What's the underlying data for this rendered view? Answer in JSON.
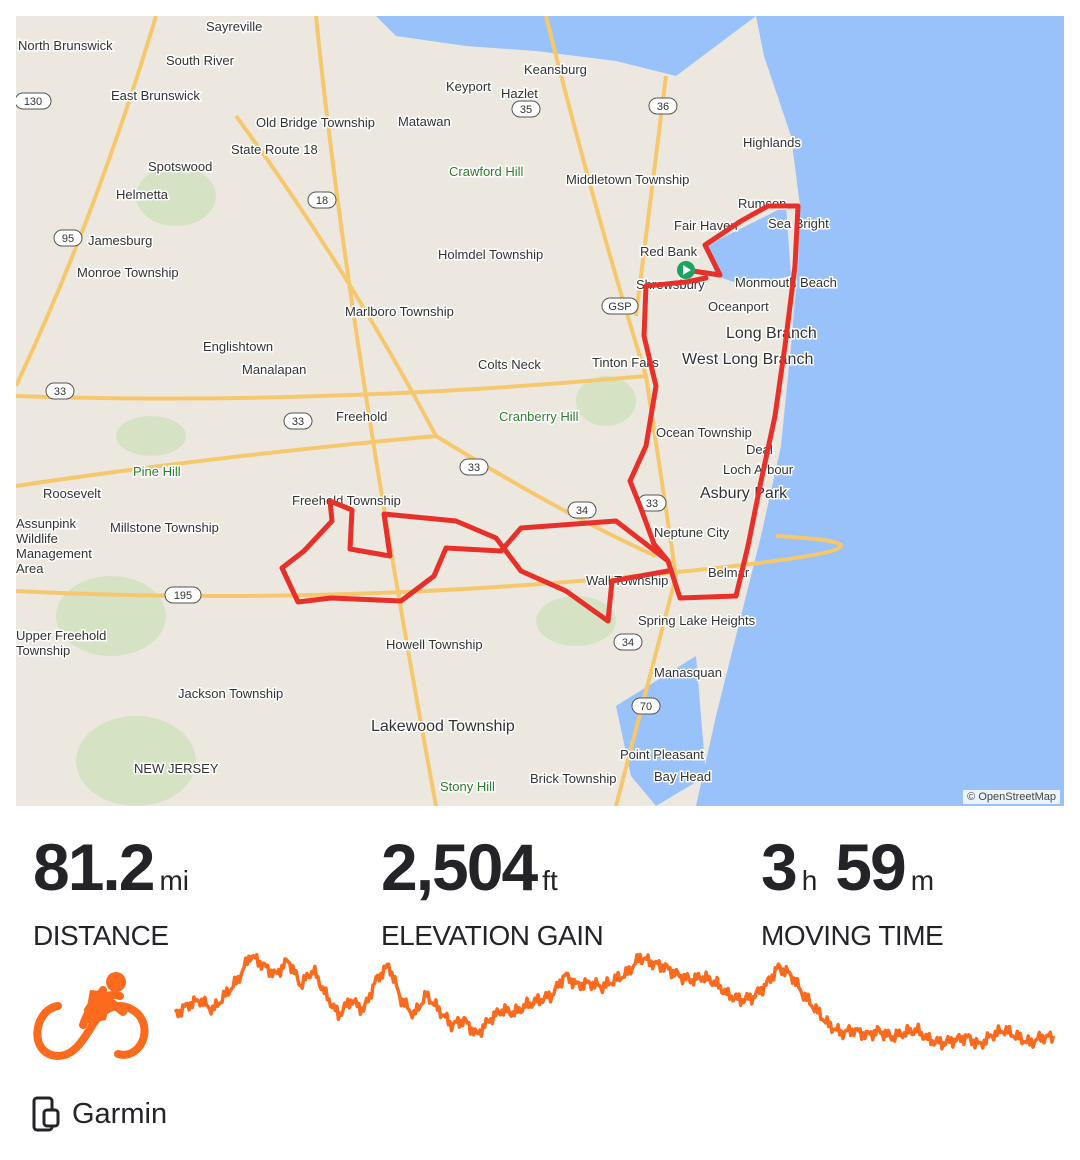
{
  "map": {
    "attribution": "© OpenStreetMap",
    "labels": [
      "Sayreville",
      "North Brunswick",
      "South River",
      "Keansburg",
      "Keyport",
      "Hazlet",
      "East Brunswick",
      "Old Bridge Township",
      "Matawan",
      "Highlands",
      "Crawford Hill",
      "Middletown Township",
      "Spotswood",
      "State Route 18",
      "Helmetta",
      "Rumson",
      "Fair Haven",
      "Sea Bright",
      "Jamesburg",
      "Holmdel Township",
      "Red Bank",
      "Monroe Township",
      "Shrewsbury",
      "Monmouth Beach",
      "Oceanport",
      "Marlboro Township",
      "Long Branch",
      "Englishtown",
      "Tinton Falls",
      "West Long Branch",
      "Colts Neck",
      "Manalapan",
      "Cranberry Hill",
      "Freehold",
      "Ocean Township",
      "Deal",
      "Loch Arbour",
      "Pine Hill",
      "Asbury Park",
      "Roosevelt",
      "Freehold Township",
      "Neptune City",
      "Millstone Township",
      "Assunpink Wildlife Management Area",
      "Belmar",
      "Wall Township",
      "Spring Lake Heights",
      "Howell Township",
      "Upper Freehold Township",
      "Manasquan",
      "Jackson Township",
      "Lakewood Township",
      "Point Pleasant",
      "NEW JERSEY",
      "Bay Head",
      "Stony Hill",
      "Brick Township"
    ],
    "shields": [
      "130",
      "35",
      "36",
      "95",
      "18",
      "GSP",
      "33",
      "33",
      "33",
      "34",
      "33",
      "195",
      "34",
      "70"
    ],
    "route_color": "#e8302a",
    "start_marker_color": "#1aa260"
  },
  "stats": [
    {
      "value": "81.2",
      "unit": "mi",
      "label": "DISTANCE"
    },
    {
      "value": "2,504",
      "unit": "ft",
      "label": "ELEVATION GAIN"
    },
    {
      "value_h": "3",
      "unit_h": "h",
      "value_m": "59",
      "unit_m": "m",
      "label": "MOVING TIME"
    }
  ],
  "activity": {
    "type_icon": "cycling-icon",
    "accent": "#fc6a1e"
  },
  "elevation_profile_relative": [
    40,
    50,
    55,
    45,
    60,
    75,
    100,
    90,
    80,
    95,
    70,
    85,
    60,
    40,
    55,
    45,
    75,
    90,
    55,
    40,
    60,
    45,
    30,
    35,
    20,
    35,
    45,
    42,
    50,
    55,
    60,
    80,
    70,
    72,
    68,
    75,
    82,
    98,
    92,
    88,
    80,
    75,
    78,
    72,
    60,
    55,
    58,
    70,
    88,
    80,
    60,
    45,
    30,
    22,
    25,
    20,
    24,
    18,
    22,
    25,
    15,
    12,
    15,
    18,
    10,
    20,
    25,
    18,
    12,
    18
  ],
  "device": {
    "icon": "watch-phone-icon",
    "label": "Garmin"
  }
}
